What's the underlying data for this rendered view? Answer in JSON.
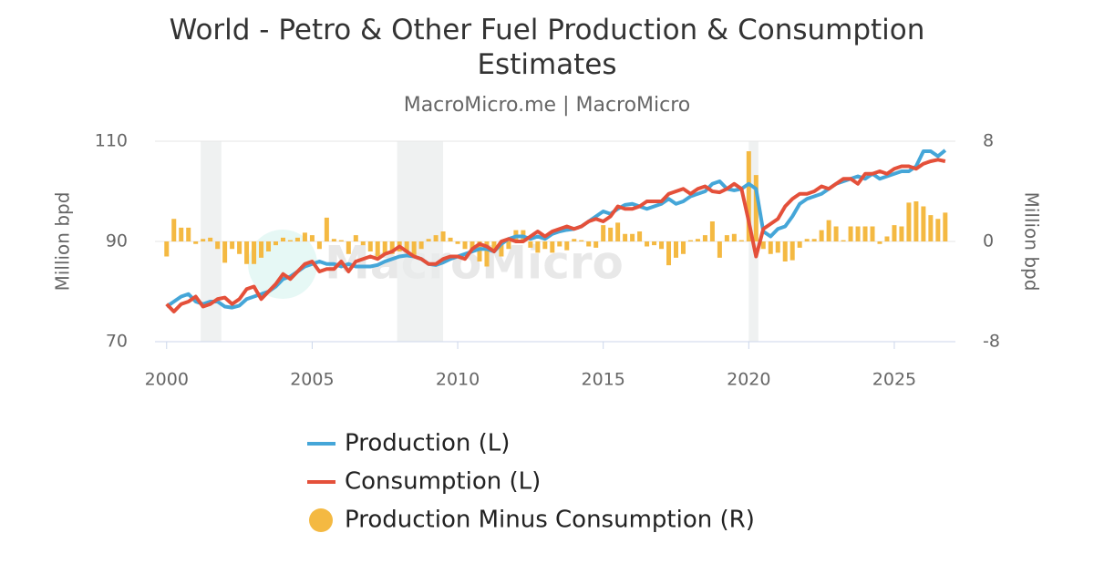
{
  "chart_data": {
    "type": "combo",
    "title": "World - Petro & Other Fuel Production & Consumption Estimates",
    "subtitle": "MacroMicro.me | MacroMicro",
    "watermark": "MacroMicro",
    "ylabel": "Million bpd",
    "y2label": "Million bpd",
    "xlim": [
      1999.6,
      2027.1
    ],
    "xticks": [
      2000,
      2005,
      2010,
      2015,
      2020,
      2025
    ],
    "ylim": [
      70,
      110
    ],
    "yticks": [
      70,
      90,
      110
    ],
    "y2lim": [
      -8,
      8
    ],
    "y2ticks": [
      -8,
      0,
      8
    ],
    "grid": true,
    "recessions": [
      [
        2001.17,
        2001.88
      ],
      [
        2007.92,
        2009.5
      ],
      [
        2020.0,
        2020.33
      ]
    ],
    "x": [
      2000,
      2000.25,
      2000.5,
      2000.75,
      2001,
      2001.25,
      2001.5,
      2001.75,
      2002,
      2002.25,
      2002.5,
      2002.75,
      2003,
      2003.25,
      2003.5,
      2003.75,
      2004,
      2004.25,
      2004.5,
      2004.75,
      2005,
      2005.25,
      2005.5,
      2005.75,
      2006,
      2006.25,
      2006.5,
      2006.75,
      2007,
      2007.25,
      2007.5,
      2007.75,
      2008,
      2008.25,
      2008.5,
      2008.75,
      2009,
      2009.25,
      2009.5,
      2009.75,
      2010,
      2010.25,
      2010.5,
      2010.75,
      2011,
      2011.25,
      2011.5,
      2011.75,
      2012,
      2012.25,
      2012.5,
      2012.75,
      2013,
      2013.25,
      2013.5,
      2013.75,
      2014,
      2014.25,
      2014.5,
      2014.75,
      2015,
      2015.25,
      2015.5,
      2015.75,
      2016,
      2016.25,
      2016.5,
      2016.75,
      2017,
      2017.25,
      2017.5,
      2017.75,
      2018,
      2018.25,
      2018.5,
      2018.75,
      2019,
      2019.25,
      2019.5,
      2019.75,
      2020,
      2020.25,
      2020.5,
      2020.75,
      2021,
      2021.25,
      2021.5,
      2021.75,
      2022,
      2022.25,
      2022.5,
      2022.75,
      2023,
      2023.25,
      2023.5,
      2023.75,
      2024,
      2024.25,
      2024.5,
      2024.75,
      2025,
      2025.25,
      2025.5,
      2025.75,
      2026,
      2026.25,
      2026.5,
      2026.75
    ],
    "series": [
      {
        "name": "Production (L)",
        "kind": "line",
        "color": "#45a6d8",
        "values": [
          77,
          78,
          79,
          79.5,
          78,
          77.5,
          78,
          78,
          77,
          76.8,
          77.2,
          78.5,
          79,
          79.5,
          80,
          81,
          82.5,
          83,
          84,
          85,
          85.5,
          86,
          85.5,
          85.5,
          85,
          85.5,
          85,
          85,
          85,
          85.3,
          86,
          86.5,
          87,
          87.2,
          87,
          86.5,
          85.5,
          85.3,
          85.8,
          86.5,
          87,
          87.5,
          88,
          88.5,
          88.5,
          88,
          89.5,
          90.5,
          91,
          91,
          90.5,
          91,
          90.5,
          91.5,
          92,
          92.3,
          92.5,
          93,
          94,
          95,
          96,
          95.5,
          96.5,
          97.3,
          97.5,
          97,
          96.5,
          97,
          97.5,
          98.5,
          97.5,
          98,
          99,
          99.5,
          100,
          101.5,
          102,
          100.5,
          100.2,
          100.5,
          101.5,
          100.5,
          92,
          91,
          92.5,
          93,
          95,
          97.5,
          98.5,
          99,
          99.5,
          100.5,
          101.5,
          102,
          102.5,
          103,
          102.5,
          103.5,
          102.5,
          103,
          103.5,
          104,
          104,
          105,
          108,
          108,
          107,
          108.2
        ]
      },
      {
        "name": "Consumption (L)",
        "kind": "line",
        "color": "#e4503a",
        "values": [
          77.5,
          76,
          77.5,
          78,
          79,
          77,
          77.5,
          78.5,
          78.8,
          77.5,
          78.5,
          80.5,
          81,
          78.5,
          80,
          81.5,
          83.5,
          82.5,
          84,
          85.5,
          86,
          84,
          84.5,
          84.5,
          86,
          84,
          86,
          86.5,
          87,
          86.5,
          87.5,
          88,
          89,
          88,
          87,
          86.5,
          85.5,
          85.5,
          86.5,
          87,
          87,
          86.5,
          88.5,
          89.5,
          89,
          88,
          90,
          90.5,
          90,
          90,
          91,
          92,
          91,
          92,
          92.5,
          93,
          92.5,
          93,
          94,
          94.5,
          94,
          95,
          97,
          96.5,
          96.5,
          97,
          98,
          98,
          98,
          99.5,
          100,
          100.5,
          99.5,
          100.5,
          101,
          100,
          99.8,
          100.5,
          101.5,
          100.5,
          94,
          87,
          92.5,
          93.5,
          94.5,
          97,
          98.5,
          99.5,
          99.5,
          100,
          101,
          100.5,
          101.5,
          102.5,
          102.5,
          101.5,
          103.5,
          103.5,
          104,
          103.5,
          104.5,
          105,
          105,
          104.5,
          105.5,
          106,
          106.3,
          106
        ]
      },
      {
        "name": "Production Minus Consumption (R)",
        "kind": "bar",
        "axis": "y2",
        "color": "#f4b942",
        "values": [
          -1.2,
          1.8,
          1.1,
          1.1,
          -0.2,
          0.2,
          0.3,
          -0.6,
          -1.7,
          -0.6,
          -1.0,
          -1.8,
          -1.8,
          -1.3,
          -0.8,
          -0.3,
          0.3,
          0.1,
          0.3,
          0.7,
          0.5,
          -0.6,
          1.9,
          0.2,
          0.1,
          -1.0,
          0.5,
          -0.3,
          -0.8,
          -1.2,
          -1.0,
          -1.0,
          -0.8,
          -0.9,
          -1.2,
          -0.6,
          0.2,
          0.5,
          0.8,
          0.3,
          -0.2,
          -0.6,
          -0.8,
          -1.6,
          -2.0,
          -0.8,
          -1.2,
          -0.6,
          0.9,
          0.9,
          -0.5,
          -0.9,
          -0.6,
          -0.9,
          -0.4,
          -0.7,
          0.2,
          0.1,
          -0.4,
          -0.5,
          1.3,
          1.1,
          1.5,
          0.6,
          0.6,
          0.8,
          -0.4,
          -0.3,
          -0.6,
          -1.9,
          -1.3,
          -1.0,
          0.1,
          0.2,
          0.5,
          1.6,
          -1.3,
          0.5,
          0.6,
          0.1,
          7.2,
          5.3,
          -0.6,
          -1.0,
          -0.9,
          -1.6,
          -1.5,
          -0.5,
          0.2,
          0.2,
          0.9,
          1.7,
          1.2,
          0.1,
          1.2,
          1.2,
          1.2,
          1.2,
          -0.2,
          0.4,
          1.3,
          1.2,
          3.1,
          3.2,
          2.8,
          2.1,
          1.8,
          2.3
        ]
      }
    ]
  }
}
